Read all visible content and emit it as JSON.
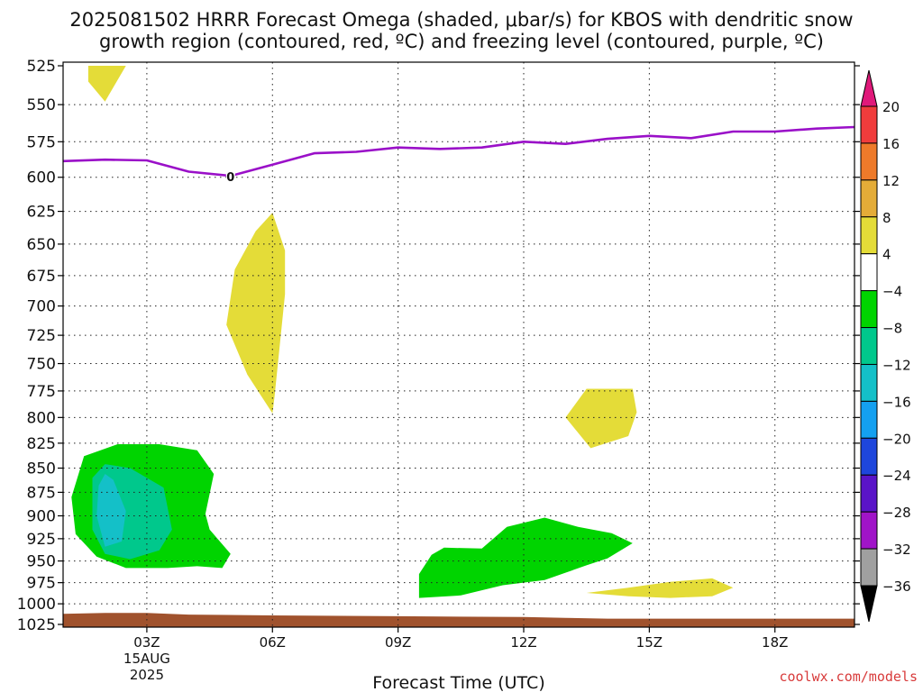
{
  "title_line1": "2025081502 HRRR Forecast Omega (shaded, μbar/s) for KBOS with dendritic snow",
  "title_line2": "growth region (contoured, red, ºC) and freezing level (contoured, purple, ºC)",
  "xlabel": "Forecast Time (UTC)",
  "credit": "coolwx.com/models",
  "chart_data": {
    "type": "area",
    "x_axis": {
      "unit": "hours since 00Z 15AUG2025",
      "range": [
        1.0,
        19.9
      ],
      "ticks": [
        {
          "hour": 3,
          "label": "03Z",
          "sub1": "15AUG",
          "sub2": "2025"
        },
        {
          "hour": 6,
          "label": "06Z"
        },
        {
          "hour": 9,
          "label": "09Z"
        },
        {
          "hour": 12,
          "label": "12Z"
        },
        {
          "hour": 15,
          "label": "15Z"
        },
        {
          "hour": 18,
          "label": "18Z"
        }
      ]
    },
    "y_axis": {
      "unit": "mb",
      "range": [
        525,
        1025
      ],
      "ticks": [
        525,
        550,
        575,
        600,
        625,
        650,
        675,
        700,
        725,
        750,
        775,
        800,
        825,
        850,
        875,
        900,
        925,
        950,
        975,
        1000,
        1025
      ]
    },
    "grid": true,
    "colorbar": {
      "labels": [
        "20",
        "16",
        "12",
        "8",
        "4",
        "−4",
        "−8",
        "−12",
        "−16",
        "−20",
        "−24",
        "−28",
        "−32",
        "−36"
      ],
      "bins": [
        {
          "range": [
            16,
            20
          ],
          "color": "#f03c3c"
        },
        {
          "range": [
            12,
            16
          ],
          "color": "#ee7a2a"
        },
        {
          "range": [
            8,
            12
          ],
          "color": "#e4ac38"
        },
        {
          "range": [
            4,
            8
          ],
          "color": "#e4dc38"
        },
        {
          "range": [
            -4,
            4
          ],
          "color": "#ffffff"
        },
        {
          "range": [
            -8,
            -4
          ],
          "color": "#00d400"
        },
        {
          "range": [
            -12,
            -8
          ],
          "color": "#00c88c"
        },
        {
          "range": [
            -16,
            -12
          ],
          "color": "#14c0c8"
        },
        {
          "range": [
            -20,
            -16
          ],
          "color": "#14a0f0"
        },
        {
          "range": [
            -24,
            -20
          ],
          "color": "#1e46dc"
        },
        {
          "range": [
            -28,
            -24
          ],
          "color": "#5a14c8"
        },
        {
          "range": [
            -32,
            -28
          ],
          "color": "#a014c8"
        },
        {
          "range": [
            -36,
            -32
          ],
          "color": "#a0a0a0"
        }
      ],
      "over_color": "#e0197a",
      "under_color": "#000000"
    },
    "freezing_level": {
      "label": "0",
      "label_point": [
        5,
        599.5
      ],
      "color": "#9a10c8",
      "points": [
        [
          1.0,
          588.5
        ],
        [
          2.0,
          587.5
        ],
        [
          3.0,
          588.0
        ],
        [
          4.0,
          596.0
        ],
        [
          5.0,
          599.0
        ],
        [
          6.0,
          591.0
        ],
        [
          7.0,
          583.0
        ],
        [
          8.0,
          582.0
        ],
        [
          9.0,
          579.0
        ],
        [
          10.0,
          580.0
        ],
        [
          11.0,
          579.0
        ],
        [
          12.0,
          575.0
        ],
        [
          13.0,
          576.5
        ],
        [
          14.0,
          573.0
        ],
        [
          15.0,
          571.0
        ],
        [
          16.0,
          572.5
        ],
        [
          17.0,
          568.0
        ],
        [
          18.0,
          568.0
        ],
        [
          19.0,
          566.0
        ],
        [
          19.9,
          565.0
        ]
      ]
    },
    "omega_regions": [
      {
        "value_bin": "4 to 8",
        "color": "#e4dc38",
        "points": [
          [
            1.6,
            525
          ],
          [
            2.5,
            525
          ],
          [
            2.0,
            548
          ],
          [
            1.6,
            535
          ]
        ]
      },
      {
        "value_bin": "4 to 8",
        "color": "#e4dc38",
        "points": [
          [
            6.0,
            626
          ],
          [
            6.3,
            655
          ],
          [
            6.3,
            690
          ],
          [
            6.05,
            780
          ],
          [
            6.0,
            796
          ],
          [
            5.4,
            760
          ],
          [
            4.9,
            716
          ],
          [
            5.1,
            670
          ],
          [
            5.6,
            640
          ]
        ]
      },
      {
        "value_bin": "4 to 8",
        "color": "#e4dc38",
        "points": [
          [
            13.5,
            773
          ],
          [
            14.6,
            773
          ],
          [
            14.7,
            795
          ],
          [
            14.5,
            818
          ],
          [
            13.6,
            830
          ],
          [
            13.0,
            800
          ]
        ]
      },
      {
        "value_bin": "4 to 8",
        "color": "#e4dc38",
        "points": [
          [
            13.5,
            987
          ],
          [
            14.5,
            981
          ],
          [
            15.5,
            974
          ],
          [
            16.5,
            970
          ],
          [
            17.0,
            981
          ],
          [
            16.5,
            991
          ],
          [
            15.5,
            993
          ],
          [
            14.5,
            991
          ]
        ]
      },
      {
        "value_bin": "-8 to -4",
        "color": "#00d400",
        "points": [
          [
            2.3,
            826
          ],
          [
            3.3,
            826
          ],
          [
            4.2,
            832
          ],
          [
            4.6,
            856
          ],
          [
            4.4,
            898
          ],
          [
            4.5,
            915
          ],
          [
            5.0,
            942
          ],
          [
            4.8,
            958
          ],
          [
            4.2,
            956
          ],
          [
            3.5,
            958
          ],
          [
            2.5,
            958
          ],
          [
            1.8,
            945
          ],
          [
            1.3,
            920
          ],
          [
            1.2,
            880
          ],
          [
            1.5,
            838
          ]
        ]
      },
      {
        "value_bin": "-8 to -4",
        "color": "#00d400",
        "points": [
          [
            10.1,
            935
          ],
          [
            11.0,
            936
          ],
          [
            11.6,
            912
          ],
          [
            12.5,
            902
          ],
          [
            13.3,
            912
          ],
          [
            14.1,
            919
          ],
          [
            14.6,
            930
          ],
          [
            14.0,
            947
          ],
          [
            13.5,
            955
          ],
          [
            12.5,
            972
          ],
          [
            11.5,
            978
          ],
          [
            10.5,
            990
          ],
          [
            9.5,
            993
          ],
          [
            9.5,
            965
          ],
          [
            9.8,
            943
          ]
        ]
      },
      {
        "value_bin": "-12 to -8",
        "color": "#00c88c",
        "points": [
          [
            2.0,
            846
          ],
          [
            2.6,
            850
          ],
          [
            3.4,
            870
          ],
          [
            3.6,
            915
          ],
          [
            3.3,
            938
          ],
          [
            2.6,
            948
          ],
          [
            2.0,
            942
          ],
          [
            1.7,
            915
          ],
          [
            1.7,
            860
          ]
        ]
      },
      {
        "value_bin": "-16 to -12",
        "color": "#14c0c8",
        "points": [
          [
            2.0,
            856
          ],
          [
            2.2,
            862
          ],
          [
            2.5,
            895
          ],
          [
            2.4,
            928
          ],
          [
            2.0,
            934
          ],
          [
            1.8,
            900
          ],
          [
            1.85,
            868
          ]
        ]
      }
    ],
    "surface": {
      "color": "#a0522d",
      "top_points": [
        [
          1.0,
          1012
        ],
        [
          2.0,
          1011
        ],
        [
          3.0,
          1011
        ],
        [
          4.0,
          1013
        ],
        [
          6.0,
          1014
        ],
        [
          9.0,
          1015
        ],
        [
          12.0,
          1016
        ],
        [
          13.0,
          1017
        ],
        [
          14.0,
          1018
        ],
        [
          19.9,
          1018
        ]
      ]
    }
  }
}
